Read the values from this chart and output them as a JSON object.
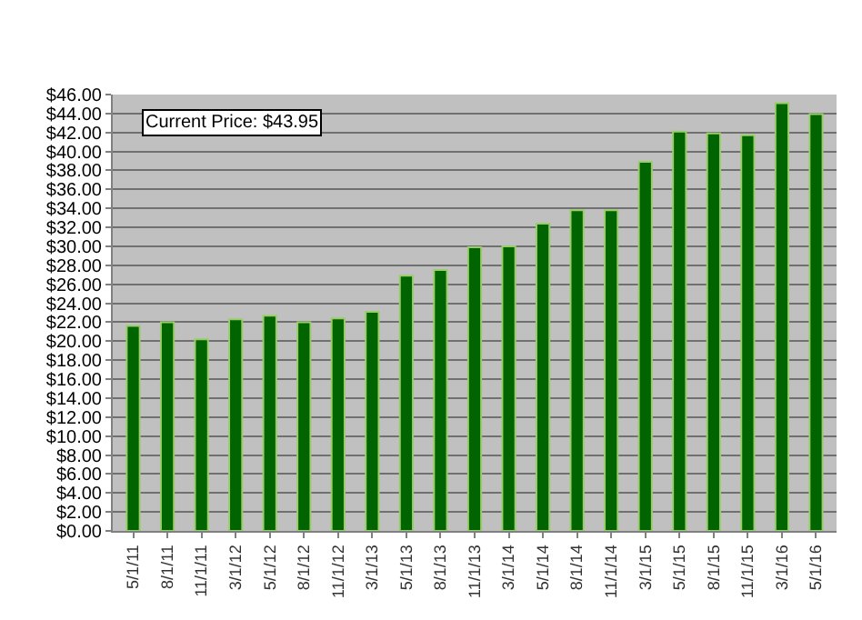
{
  "chart_data": {
    "type": "bar",
    "categories": [
      "5/1/11",
      "8/1/11",
      "11/1/11",
      "3/1/12",
      "5/1/12",
      "8/1/12",
      "11/1/12",
      "3/1/13",
      "5/1/13",
      "8/1/13",
      "11/1/13",
      "3/1/14",
      "5/1/14",
      "8/1/14",
      "11/1/14",
      "3/1/15",
      "5/1/15",
      "8/1/15",
      "11/1/15",
      "3/1/16",
      "5/1/16"
    ],
    "values": [
      21.6,
      22.0,
      20.2,
      22.3,
      22.7,
      22.0,
      22.4,
      23.1,
      26.9,
      27.5,
      29.9,
      30.0,
      32.4,
      33.8,
      33.8,
      38.9,
      42.1,
      41.9,
      41.7,
      45.1,
      43.95
    ],
    "color": "#006400",
    "ylim": [
      0,
      46
    ],
    "yticks": [
      {
        "value": 0,
        "label": "$0.00"
      },
      {
        "value": 2,
        "label": "$2.00"
      },
      {
        "value": 4,
        "label": "$4.00"
      },
      {
        "value": 6,
        "label": "$6.00"
      },
      {
        "value": 8,
        "label": "$8.00"
      },
      {
        "value": 10,
        "label": "$10.00"
      },
      {
        "value": 12,
        "label": "$12.00"
      },
      {
        "value": 14,
        "label": "$14.00"
      },
      {
        "value": 16,
        "label": "$16.00"
      },
      {
        "value": 18,
        "label": "$18.00"
      },
      {
        "value": 20,
        "label": "$20.00"
      },
      {
        "value": 22,
        "label": "$22.00"
      },
      {
        "value": 24,
        "label": "$24.00"
      },
      {
        "value": 26,
        "label": "$26.00"
      },
      {
        "value": 28,
        "label": "$28.00"
      },
      {
        "value": 30,
        "label": "$30.00"
      },
      {
        "value": 32,
        "label": "$32.00"
      },
      {
        "value": 34,
        "label": "$34.00"
      },
      {
        "value": 36,
        "label": "$36.00"
      },
      {
        "value": 38,
        "label": "$38.00"
      },
      {
        "value": 40,
        "label": "$40.00"
      },
      {
        "value": 42,
        "label": "$42.00"
      },
      {
        "value": 44,
        "label": "$44.00"
      },
      {
        "value": 46,
        "label": "$46.00"
      }
    ],
    "grid": "y",
    "annotations": [
      "Current Price: $43.95"
    ]
  }
}
